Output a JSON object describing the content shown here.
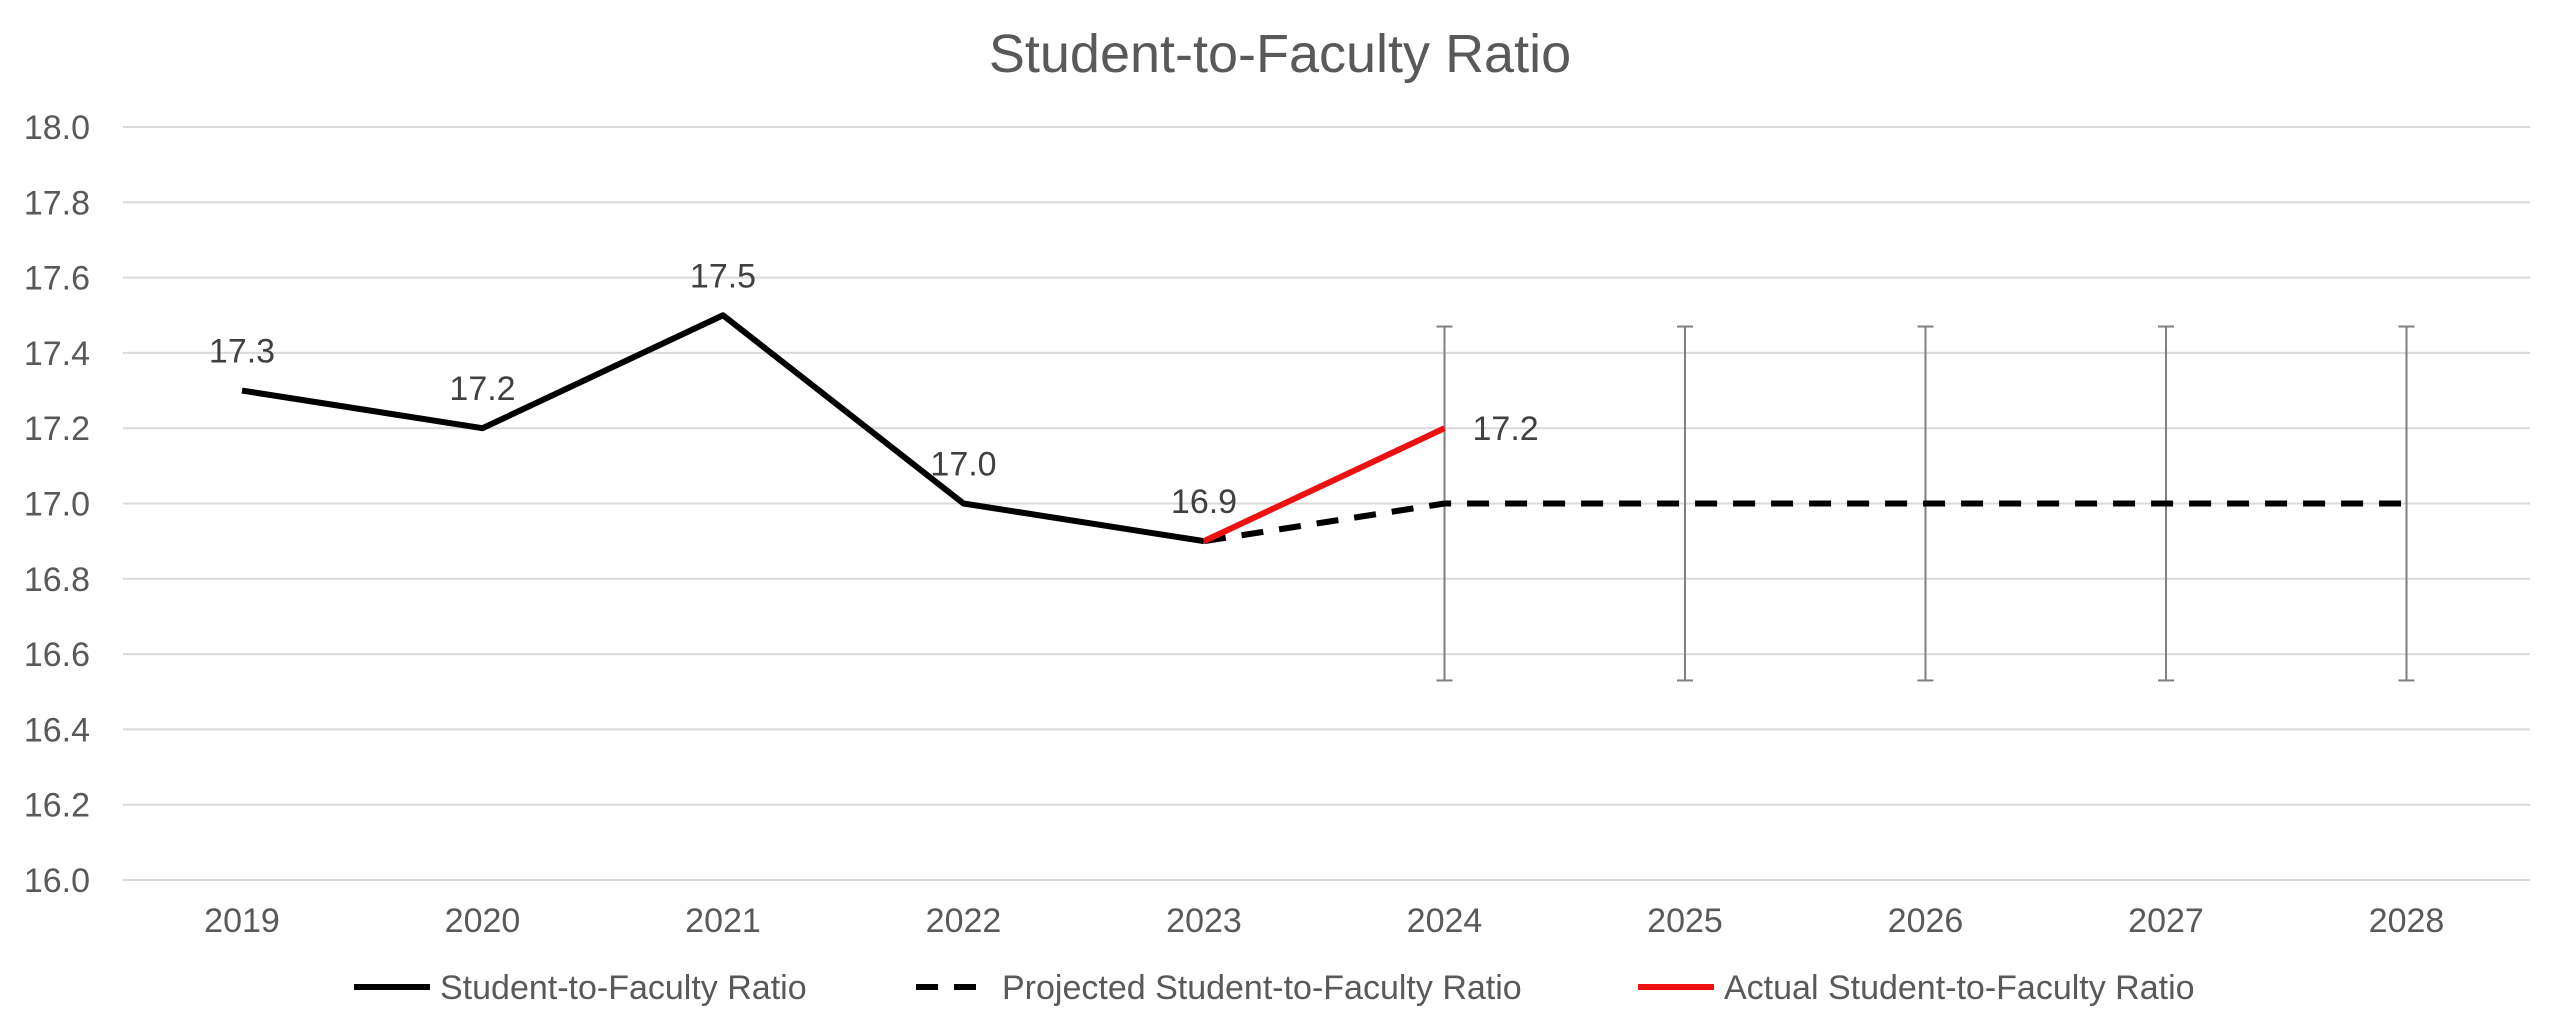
{
  "chart_data": {
    "type": "line",
    "title": "Student-to-Faculty Ratio",
    "xlabel": "",
    "ylabel": "",
    "categories": [
      "2019",
      "2020",
      "2021",
      "2022",
      "2023",
      "2024",
      "2025",
      "2026",
      "2027",
      "2028"
    ],
    "ylim": [
      16.0,
      18.0
    ],
    "y_ticks": [
      "16.0",
      "16.2",
      "16.4",
      "16.6",
      "16.8",
      "17.0",
      "17.2",
      "17.4",
      "17.6",
      "17.8",
      "18.0"
    ],
    "grid": true,
    "legend_position": "bottom",
    "series": [
      {
        "name": "Student-to-Faculty Ratio",
        "style": "solid",
        "color": "#000000",
        "x": [
          "2019",
          "2020",
          "2021",
          "2022",
          "2023"
        ],
        "values": [
          17.3,
          17.2,
          17.5,
          17.0,
          16.9
        ],
        "labels": [
          "17.3",
          "17.2",
          "17.5",
          "17.0",
          "16.9"
        ]
      },
      {
        "name": "Projected Student-to-Faculty Ratio",
        "style": "dashed",
        "color": "#000000",
        "x": [
          "2023",
          "2024",
          "2025",
          "2026",
          "2027",
          "2028"
        ],
        "values": [
          16.9,
          17.0,
          17.0,
          17.0,
          17.0,
          17.0
        ],
        "error_bars": {
          "x": [
            "2024",
            "2025",
            "2026",
            "2027",
            "2028"
          ],
          "upper": [
            17.47,
            17.47,
            17.47,
            17.47,
            17.47
          ],
          "lower": [
            16.53,
            16.53,
            16.53,
            16.53,
            16.53
          ],
          "color": "#7f7f7f"
        }
      },
      {
        "name": "Actual Student-to-Faculty Ratio",
        "style": "solid",
        "color": "#ee1111",
        "x": [
          "2023",
          "2024"
        ],
        "values": [
          16.9,
          17.2
        ],
        "labels": [
          "",
          "17.2"
        ]
      }
    ]
  }
}
